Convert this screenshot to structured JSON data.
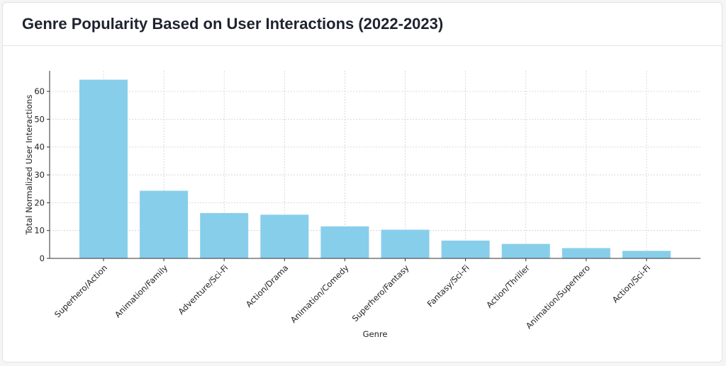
{
  "page": {
    "title": "Genre Popularity Based on User Interactions (2022-2023)"
  },
  "chart_data": {
    "type": "bar",
    "categories": [
      "Superhero/Action",
      "Animation/Family",
      "Adventure/Sci-Fi",
      "Action/Drama",
      "Animation/Comedy",
      "Superhero/Fantasy",
      "Fantasy/Sci-Fi",
      "Action/Thriller",
      "Animation/Superhero",
      "Action/Sci-Fi"
    ],
    "values": [
      64.2,
      24.3,
      16.3,
      15.7,
      11.5,
      10.3,
      6.4,
      5.2,
      3.7,
      2.7
    ],
    "xlabel": "Genre",
    "ylabel": "Total Normalized User Interactions",
    "ylim": [
      0,
      67.4
    ],
    "yticks": [
      0,
      10,
      20,
      30,
      40,
      50,
      60
    ],
    "grid": true,
    "bar_color": "#87ceeb"
  }
}
